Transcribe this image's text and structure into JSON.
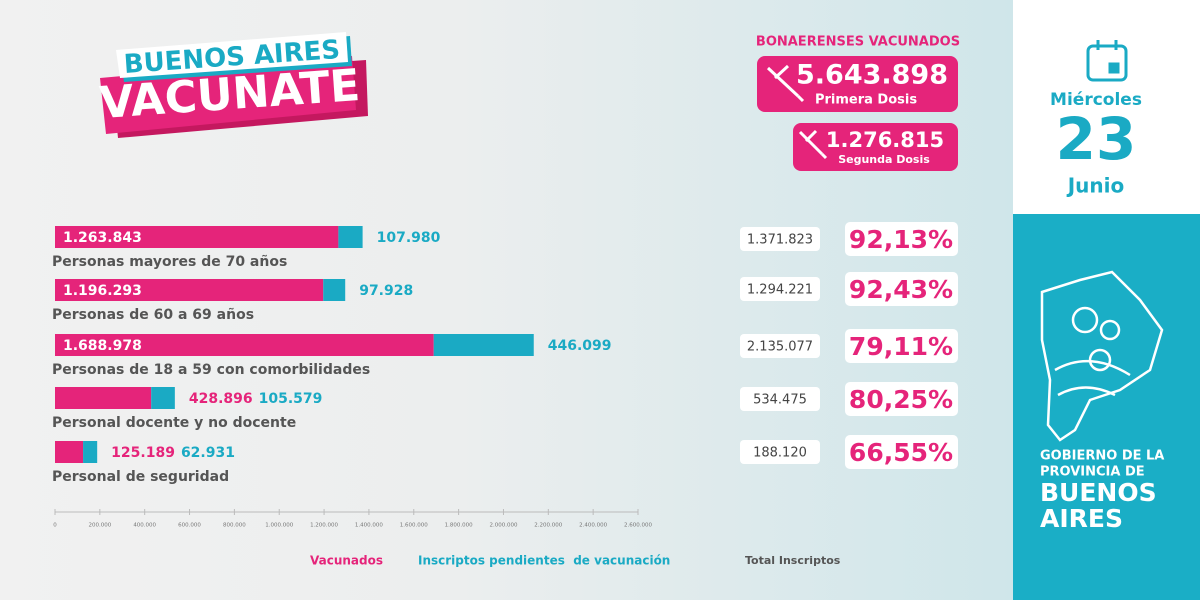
{
  "logo": {
    "line1": "BUENOS AIRES",
    "line2": "VACUNATE"
  },
  "summary": {
    "title": "BONAERENSES VACUNADOS",
    "first": {
      "value": "5.643.898",
      "label": "Primera Dosis"
    },
    "second": {
      "value": "1.276.815",
      "label": "Segunda Dosis"
    }
  },
  "date": {
    "weekday": "Miércoles",
    "day": "23",
    "month": "Junio"
  },
  "government": [
    "GOBIERNO DE LA",
    "PROVINCIA DE",
    "BUENOS",
    "AIRES"
  ],
  "chart_data": {
    "type": "stacked-bar-horizontal",
    "categories": [
      "Personas mayores de 70 años",
      "Personas de 60 a 69 años",
      "Personas de 18 a 59 con comorbilidades",
      "Personal docente y no docente",
      "Personal de seguridad"
    ],
    "series": [
      {
        "name": "Vacunados",
        "color": "#e5247a",
        "values": [
          1263843,
          1196293,
          1688978,
          428896,
          125189
        ],
        "value_labels": [
          "1.263.843",
          "1.196.293",
          "1.688.978",
          "428.896",
          "125.189"
        ]
      },
      {
        "name": "Inscriptos pendientes  de vacunación",
        "color": "#1aaac4",
        "values": [
          107980,
          97928,
          446099,
          105579,
          62931
        ],
        "value_labels": [
          "107.980",
          "97.928",
          "446.099",
          "105.579",
          "62.931"
        ]
      }
    ],
    "xlim": [
      0,
      2600000
    ],
    "xticks": [
      0,
      {
        "value": 200000,
        "label": "200.000"
      },
      {
        "value": 400000,
        "label": "400.000"
      },
      {
        "value": 600000,
        "label": "600.000"
      },
      {
        "value": 800000,
        "label": "800.000"
      },
      {
        "value": 1000000,
        "label": "1.000.000"
      },
      {
        "value": 1200000,
        "label": "1.200.000"
      },
      {
        "value": 1400000,
        "label": "1.400.000"
      },
      {
        "value": 1600000,
        "label": "1.600.000"
      },
      {
        "value": 1800000,
        "label": "1.800.000"
      },
      {
        "value": 2000000,
        "label": "2.000.000"
      },
      {
        "value": 2200000,
        "label": "2.200.000"
      },
      {
        "value": 2400000,
        "label": "2.400.000"
      },
      {
        "value": 2600000,
        "label": "2.600.000"
      }
    ]
  },
  "side_table": {
    "header": "Total Inscriptos",
    "rows": [
      {
        "total": "1.371.823",
        "percent": "92,13%"
      },
      {
        "total": "1.294.221",
        "percent": "92,43%"
      },
      {
        "total": "2.135.077",
        "percent": "79,11%"
      },
      {
        "total": "534.475",
        "percent": "80,25%"
      },
      {
        "total": "188.120",
        "percent": "66,55%"
      }
    ]
  }
}
